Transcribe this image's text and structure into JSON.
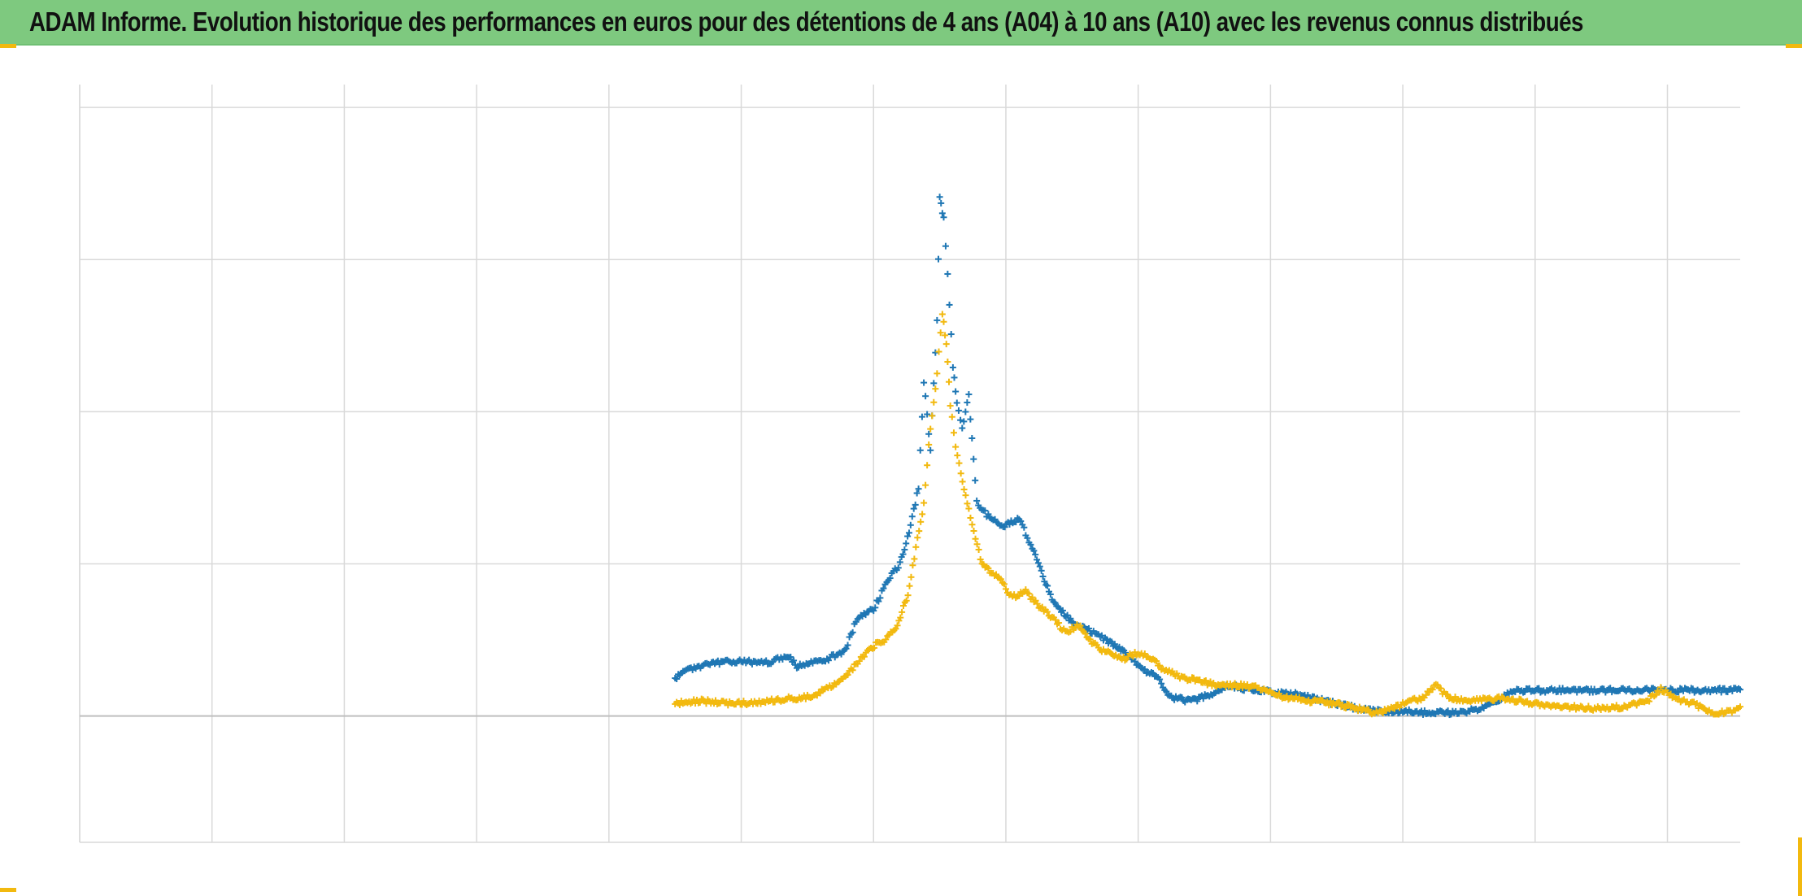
{
  "colors": {
    "title_background": "#7ec97f",
    "grid": "#d9d9d9",
    "zero_axis": "#bfbfbf",
    "series_a04": "#1f77b4",
    "series_a10": "#f2b90f",
    "corner_accent": "#f2b90f"
  },
  "chart_data": {
    "type": "scatter",
    "title": "ADAM Informe. Evolution historique des performances en euros pour des détentions de 4 ans (A04) à 10 ans (A10) avec les revenus connus distribués",
    "xlabel": "",
    "ylabel": "",
    "marker": "+",
    "xlim": [
      0,
      12.55
    ],
    "ylim": [
      -0.83,
      4.15
    ],
    "x_gridlines": 13,
    "y_gridlines": [
      -0.83,
      0,
      1,
      2,
      3,
      4
    ],
    "grid": true,
    "tick_labels_visible": false,
    "legend": "none",
    "series": [
      {
        "key": "a04",
        "color": "#1f77b4",
        "points": [
          [
            4.5,
            0.25
          ],
          [
            4.62,
            0.31
          ],
          [
            4.8,
            0.35
          ],
          [
            5.0,
            0.36
          ],
          [
            5.2,
            0.35
          ],
          [
            5.35,
            0.4
          ],
          [
            5.42,
            0.33
          ],
          [
            5.6,
            0.36
          ],
          [
            5.78,
            0.42
          ],
          [
            5.88,
            0.65
          ],
          [
            6.0,
            0.7
          ],
          [
            6.1,
            0.88
          ],
          [
            6.2,
            1.0
          ],
          [
            6.28,
            1.25
          ],
          [
            6.34,
            1.5
          ],
          [
            6.38,
            2.2
          ],
          [
            6.43,
            1.75
          ],
          [
            6.48,
            2.6
          ],
          [
            6.5,
            3.4
          ],
          [
            6.53,
            3.27
          ],
          [
            6.56,
            2.9
          ],
          [
            6.6,
            2.3
          ],
          [
            6.63,
            2.05
          ],
          [
            6.67,
            1.9
          ],
          [
            6.72,
            2.1
          ],
          [
            6.78,
            1.4
          ],
          [
            6.88,
            1.3
          ],
          [
            6.98,
            1.25
          ],
          [
            7.1,
            1.3
          ],
          [
            7.2,
            1.1
          ],
          [
            7.28,
            0.92
          ],
          [
            7.36,
            0.75
          ],
          [
            7.5,
            0.62
          ],
          [
            7.65,
            0.55
          ],
          [
            7.8,
            0.48
          ],
          [
            7.95,
            0.38
          ],
          [
            8.05,
            0.3
          ],
          [
            8.15,
            0.25
          ],
          [
            8.25,
            0.12
          ],
          [
            8.4,
            0.1
          ],
          [
            8.55,
            0.14
          ],
          [
            8.68,
            0.2
          ],
          [
            8.8,
            0.18
          ],
          [
            9.0,
            0.16
          ],
          [
            9.2,
            0.14
          ],
          [
            9.4,
            0.1
          ],
          [
            9.6,
            0.06
          ],
          [
            9.8,
            0.03
          ],
          [
            10.0,
            0.03
          ],
          [
            10.2,
            0.02
          ],
          [
            10.4,
            0.02
          ],
          [
            10.6,
            0.05
          ],
          [
            10.85,
            0.17
          ],
          [
            11.1,
            0.17
          ],
          [
            11.4,
            0.17
          ],
          [
            11.7,
            0.17
          ],
          [
            12.0,
            0.17
          ],
          [
            12.3,
            0.17
          ],
          [
            12.55,
            0.17
          ]
        ]
      },
      {
        "key": "a10",
        "color": "#f2b90f",
        "points": [
          [
            4.5,
            0.08
          ],
          [
            4.7,
            0.1
          ],
          [
            4.9,
            0.08
          ],
          [
            5.1,
            0.09
          ],
          [
            5.3,
            0.11
          ],
          [
            5.45,
            0.12
          ],
          [
            5.55,
            0.13
          ],
          [
            5.68,
            0.2
          ],
          [
            5.78,
            0.26
          ],
          [
            5.88,
            0.35
          ],
          [
            5.98,
            0.45
          ],
          [
            6.08,
            0.5
          ],
          [
            6.18,
            0.6
          ],
          [
            6.26,
            0.8
          ],
          [
            6.32,
            1.1
          ],
          [
            6.38,
            1.4
          ],
          [
            6.43,
            1.9
          ],
          [
            6.48,
            2.25
          ],
          [
            6.52,
            2.65
          ],
          [
            6.55,
            2.45
          ],
          [
            6.58,
            2.05
          ],
          [
            6.62,
            1.78
          ],
          [
            6.66,
            1.6
          ],
          [
            6.72,
            1.35
          ],
          [
            6.82,
            1.0
          ],
          [
            6.95,
            0.9
          ],
          [
            7.05,
            0.78
          ],
          [
            7.15,
            0.82
          ],
          [
            7.25,
            0.72
          ],
          [
            7.35,
            0.65
          ],
          [
            7.45,
            0.55
          ],
          [
            7.55,
            0.6
          ],
          [
            7.65,
            0.48
          ],
          [
            7.75,
            0.42
          ],
          [
            7.9,
            0.38
          ],
          [
            8.0,
            0.42
          ],
          [
            8.1,
            0.38
          ],
          [
            8.2,
            0.3
          ],
          [
            8.35,
            0.25
          ],
          [
            8.5,
            0.22
          ],
          [
            8.65,
            0.2
          ],
          [
            8.8,
            0.2
          ],
          [
            8.95,
            0.18
          ],
          [
            9.1,
            0.12
          ],
          [
            9.3,
            0.1
          ],
          [
            9.5,
            0.08
          ],
          [
            9.65,
            0.05
          ],
          [
            9.8,
            0.02
          ],
          [
            9.95,
            0.06
          ],
          [
            10.05,
            0.1
          ],
          [
            10.15,
            0.12
          ],
          [
            10.25,
            0.2
          ],
          [
            10.35,
            0.12
          ],
          [
            10.5,
            0.1
          ],
          [
            10.75,
            0.12
          ],
          [
            11.0,
            0.08
          ],
          [
            11.25,
            0.06
          ],
          [
            11.45,
            0.05
          ],
          [
            11.65,
            0.06
          ],
          [
            11.85,
            0.1
          ],
          [
            11.95,
            0.18
          ],
          [
            12.05,
            0.12
          ],
          [
            12.2,
            0.08
          ],
          [
            12.35,
            0.02
          ],
          [
            12.45,
            0.03
          ],
          [
            12.55,
            0.05
          ]
        ]
      }
    ]
  }
}
